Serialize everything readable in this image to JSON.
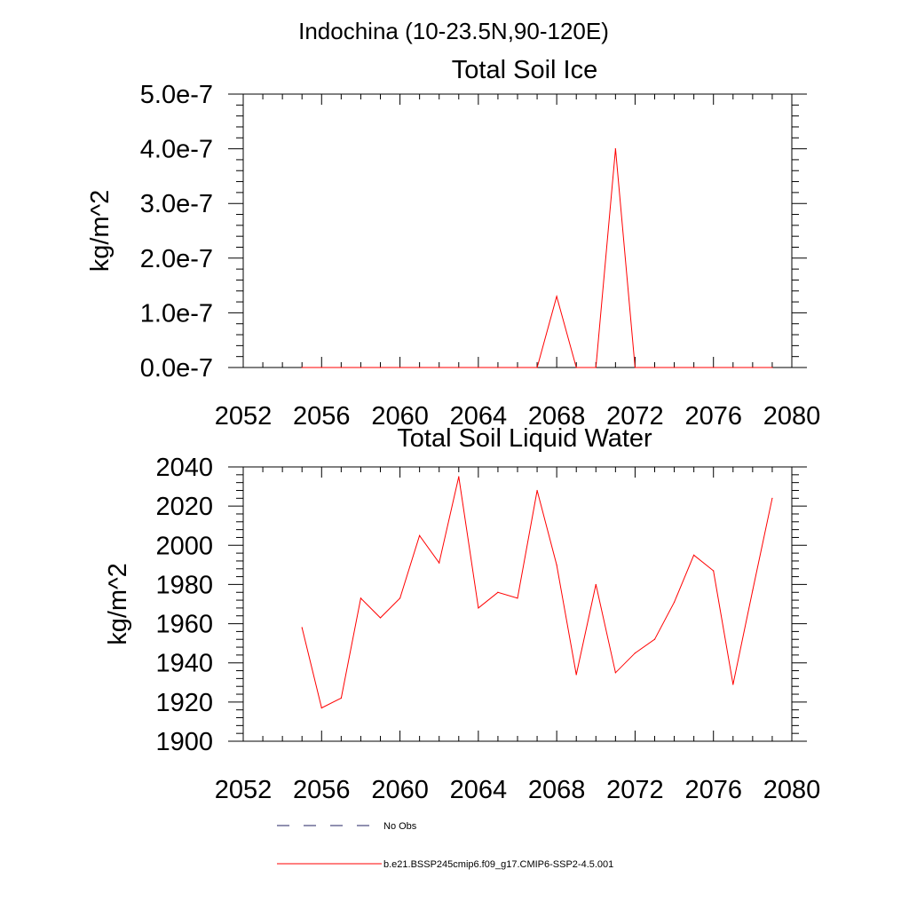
{
  "page": {
    "title": "Indochina (10-23.5N,90-120E)"
  },
  "chart_data": [
    {
      "type": "line",
      "title": "Total Soil Ice",
      "xlabel": "",
      "ylabel": "kg/m^2",
      "xlim": [
        2052,
        2080
      ],
      "ylim": [
        0,
        5e-07
      ],
      "x_ticks": [
        2052,
        2056,
        2060,
        2064,
        2068,
        2072,
        2076,
        2080
      ],
      "x_tick_labels": [
        "2052",
        "2056",
        "2060",
        "2064",
        "2068",
        "2072",
        "2076",
        "2080"
      ],
      "y_ticks": [
        0,
        1e-07,
        2e-07,
        3e-07,
        4e-07,
        5e-07
      ],
      "y_tick_labels": [
        "0.0e-7",
        "1.0e-7",
        "2.0e-7",
        "3.0e-7",
        "4.0e-7",
        "5.0e-7"
      ],
      "grid": false,
      "series": [
        {
          "name": "b.e21.BSSP245cmip6.f09_g17.CMIP6-SSP2-4.5.001",
          "color": "#ff0000",
          "x": [
            2055,
            2056,
            2057,
            2058,
            2059,
            2060,
            2061,
            2062,
            2063,
            2064,
            2065,
            2066,
            2067,
            2068,
            2069,
            2070,
            2071,
            2072,
            2073,
            2074,
            2075,
            2076,
            2077,
            2078,
            2079
          ],
          "y": [
            0,
            0,
            0,
            0,
            0,
            0,
            0,
            0,
            0,
            0,
            0,
            0,
            0,
            1.3e-07,
            0,
            0,
            4e-07,
            0,
            0,
            0,
            0,
            0,
            0,
            0,
            0
          ]
        }
      ]
    },
    {
      "type": "line",
      "title": "Total Soil Liquid Water",
      "xlabel": "",
      "ylabel": "kg/m^2",
      "xlim": [
        2052,
        2080
      ],
      "ylim": [
        1900,
        2040
      ],
      "x_ticks": [
        2052,
        2056,
        2060,
        2064,
        2068,
        2072,
        2076,
        2080
      ],
      "x_tick_labels": [
        "2052",
        "2056",
        "2060",
        "2064",
        "2068",
        "2072",
        "2076",
        "2080"
      ],
      "y_ticks": [
        1900,
        1920,
        1940,
        1960,
        1980,
        2000,
        2020,
        2040
      ],
      "y_tick_labels": [
        "1900",
        "1920",
        "1940",
        "1960",
        "1980",
        "2000",
        "2020",
        "2040"
      ],
      "grid": false,
      "series": [
        {
          "name": "b.e21.BSSP245cmip6.f09_g17.CMIP6-SSP2-4.5.001",
          "color": "#ff0000",
          "x": [
            2055,
            2056,
            2057,
            2058,
            2059,
            2060,
            2061,
            2062,
            2063,
            2064,
            2065,
            2066,
            2067,
            2068,
            2069,
            2070,
            2071,
            2072,
            2073,
            2074,
            2075,
            2076,
            2077,
            2078,
            2079
          ],
          "y": [
            1958,
            1917,
            1922,
            1973,
            1963,
            1973,
            2005,
            1991,
            2035,
            1968,
            1976,
            1973,
            2028,
            1990,
            1934,
            1980,
            1935,
            1945,
            1952,
            1971,
            1995,
            1987,
            1929,
            1977,
            2024
          ]
        }
      ]
    }
  ],
  "legend": {
    "entries": [
      {
        "label": "No Obs",
        "style": "dashed",
        "color": "#202060"
      },
      {
        "label": "b.e21.BSSP245cmip6.f09_g17.CMIP6-SSP2-4.5.001",
        "style": "solid",
        "color": "#ff0000"
      }
    ]
  }
}
